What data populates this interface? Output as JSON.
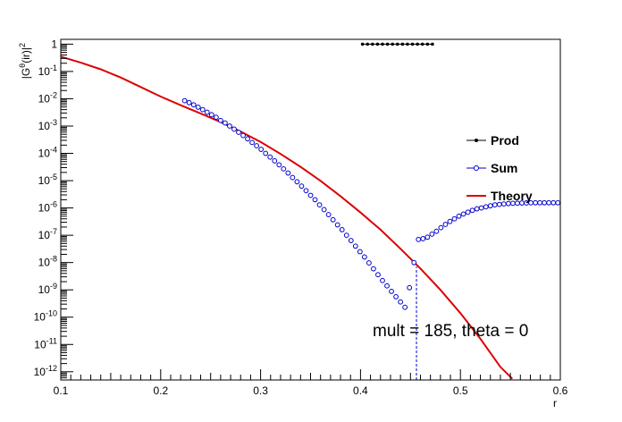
{
  "chart_data": {
    "type": "scatter",
    "title": "",
    "xlabel": "r",
    "ylabel": "|Gθ(ir)|²",
    "log_y": true,
    "xlim": [
      0.1,
      0.6
    ],
    "ylim": [
      5e-13,
      1.5
    ],
    "x_ticks": [
      0.1,
      0.2,
      0.3,
      0.4,
      0.5,
      0.6
    ],
    "x_tick_labels": [
      "0.1",
      "0.2",
      "0.3",
      "0.4",
      "0.5",
      "0.6"
    ],
    "y_ticks": [
      1,
      0.1,
      0.01,
      0.001,
      0.0001,
      1e-05,
      1e-06,
      1e-07,
      1e-08,
      1e-09,
      1e-10,
      1e-11,
      1e-12
    ],
    "y_tick_labels": [
      {
        "base": "1",
        "exp": ""
      },
      {
        "base": "10",
        "exp": "-1"
      },
      {
        "base": "10",
        "exp": "-2"
      },
      {
        "base": "10",
        "exp": "-3"
      },
      {
        "base": "10",
        "exp": "-4"
      },
      {
        "base": "10",
        "exp": "-5"
      },
      {
        "base": "10",
        "exp": "-6"
      },
      {
        "base": "10",
        "exp": "-7"
      },
      {
        "base": "10",
        "exp": "-8"
      },
      {
        "base": "10",
        "exp": "-9"
      },
      {
        "base": "10",
        "exp": "-10"
      },
      {
        "base": "10",
        "exp": "-11"
      },
      {
        "base": "10",
        "exp": "-12"
      }
    ],
    "annotation": "mult = 185, theta = 0",
    "vertical_marker_x": 0.456,
    "legend_placement": "right",
    "series": [
      {
        "name": "Prod",
        "style": "markers-line",
        "color": "#000000",
        "x": [
          0.402,
          0.407,
          0.412,
          0.417,
          0.422,
          0.427,
          0.432,
          0.437,
          0.442,
          0.447,
          0.452,
          0.457,
          0.462,
          0.467,
          0.472
        ],
        "y": [
          1,
          1,
          1,
          1,
          1,
          1,
          1,
          1,
          1,
          1,
          1,
          1,
          1,
          1,
          1
        ]
      },
      {
        "name": "Sum",
        "style": "open-circles",
        "color": "#0000cc",
        "x": [
          0.224,
          0.2285,
          0.233,
          0.2375,
          0.242,
          0.2465,
          0.251,
          0.2555,
          0.26,
          0.2645,
          0.269,
          0.2735,
          0.278,
          0.2825,
          0.287,
          0.2915,
          0.296,
          0.3005,
          0.305,
          0.3095,
          0.314,
          0.3185,
          0.323,
          0.3275,
          0.332,
          0.3365,
          0.341,
          0.3455,
          0.35,
          0.3545,
          0.359,
          0.3635,
          0.368,
          0.3725,
          0.377,
          0.3815,
          0.386,
          0.3905,
          0.395,
          0.3995,
          0.404,
          0.4085,
          0.413,
          0.4175,
          0.422,
          0.4265,
          0.431,
          0.4355,
          0.44,
          0.4445,
          0.449,
          0.4535,
          0.458,
          0.4625,
          0.467,
          0.4715,
          0.476,
          0.4805,
          0.485,
          0.4895,
          0.494,
          0.4985,
          0.503,
          0.5075,
          0.512,
          0.5165,
          0.521,
          0.5255,
          0.53,
          0.5345,
          0.539,
          0.5435,
          0.548,
          0.5525,
          0.557,
          0.5615,
          0.566,
          0.5705,
          0.575,
          0.5795,
          0.584,
          0.5885,
          0.593,
          0.5975
        ],
        "y": [
          0.0085,
          0.0072,
          0.006,
          0.0049,
          0.004,
          0.0032,
          0.0026,
          0.0021,
          0.0016,
          0.0013,
          0.001,
          0.00077,
          0.00059,
          0.00045,
          0.00034,
          0.00025,
          0.00019,
          0.00014,
          0.0001,
          7.3e-05,
          5.3e-05,
          3.8e-05,
          2.7e-05,
          1.9e-05,
          1.3e-05,
          9.1e-06,
          6.3e-06,
          4.3e-06,
          2.9e-06,
          2e-06,
          1.3e-06,
          8.7e-07,
          5.7e-07,
          3.7e-07,
          2.4e-07,
          1.6e-07,
          1e-07,
          6.4e-08,
          4e-08,
          2.5e-08,
          1.6e-08,
          9.7e-09,
          5.9e-09,
          3.6e-09,
          2.2e-09,
          1.4e-09,
          8.8e-10,
          5.6e-10,
          3.6e-10,
          2.3e-10,
          1.2e-09,
          1e-08,
          7e-08,
          7.5e-08,
          8.5e-08,
          1.1e-07,
          1.4e-07,
          1.9e-07,
          2.5e-07,
          3.2e-07,
          4e-07,
          5e-07,
          6e-07,
          7e-07,
          8.2e-07,
          9.3e-07,
          1e-06,
          1.1e-06,
          1.2e-06,
          1.3e-06,
          1.35e-06,
          1.4e-06,
          1.45e-06,
          1.48e-06,
          1.5e-06,
          1.52e-06,
          1.53e-06,
          1.54e-06,
          1.55e-06,
          1.55e-06,
          1.55e-06,
          1.55e-06,
          1.55e-06,
          1.55e-06
        ]
      },
      {
        "name": "Theory",
        "style": "line",
        "color": "#dd0000",
        "x": [
          0.1,
          0.12,
          0.14,
          0.16,
          0.18,
          0.2,
          0.22,
          0.24,
          0.26,
          0.28,
          0.3,
          0.32,
          0.34,
          0.36,
          0.38,
          0.4,
          0.42,
          0.44,
          0.46,
          0.48,
          0.5,
          0.52,
          0.54,
          0.552
        ],
        "y": [
          0.35,
          0.21,
          0.12,
          0.06,
          0.027,
          0.012,
          0.0058,
          0.0029,
          0.0014,
          0.00063,
          0.00026,
          9.5e-05,
          3.2e-05,
          9.8e-06,
          2.7e-06,
          6.8e-07,
          1.6e-07,
          3.2e-08,
          6e-09,
          1e-09,
          1.4e-10,
          1.6e-11,
          1.5e-12,
          5.5e-13
        ]
      }
    ]
  }
}
